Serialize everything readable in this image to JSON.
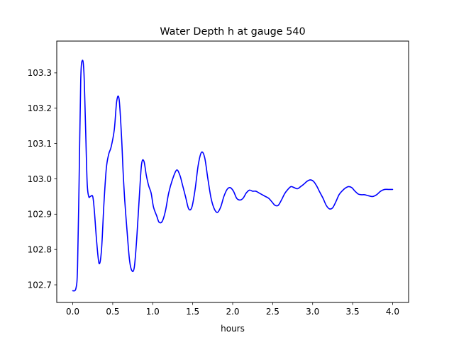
{
  "chart_data": {
    "type": "line",
    "title": "Water Depth h at gauge 540",
    "xlabel": "hours",
    "ylabel": "",
    "xlim": [
      -0.2,
      4.2
    ],
    "ylim": [
      102.65,
      103.39
    ],
    "x_ticks": [
      0.0,
      0.5,
      1.0,
      1.5,
      2.0,
      2.5,
      3.0,
      3.5,
      4.0
    ],
    "x_tick_labels": [
      "0.0",
      "0.5",
      "1.0",
      "1.5",
      "2.0",
      "2.5",
      "3.0",
      "3.5",
      "4.0"
    ],
    "y_ticks": [
      102.7,
      102.8,
      102.9,
      103.0,
      103.1,
      103.2,
      103.3
    ],
    "y_tick_labels": [
      "102.7",
      "102.8",
      "102.9",
      "103.0",
      "103.1",
      "103.2",
      "103.3"
    ],
    "grid": false,
    "series": [
      {
        "color": "#0000ff",
        "x": [
          0.0,
          0.04,
          0.06,
          0.08,
          0.1,
          0.12,
          0.14,
          0.16,
          0.18,
          0.2,
          0.22,
          0.25,
          0.27,
          0.3,
          0.33,
          0.36,
          0.39,
          0.42,
          0.45,
          0.48,
          0.52,
          0.55,
          0.58,
          0.61,
          0.63,
          0.65,
          0.68,
          0.71,
          0.74,
          0.77,
          0.8,
          0.83,
          0.86,
          0.89,
          0.92,
          0.95,
          0.98,
          1.01,
          1.05,
          1.08,
          1.12,
          1.16,
          1.2,
          1.25,
          1.3,
          1.34,
          1.37,
          1.41,
          1.45,
          1.49,
          1.53,
          1.57,
          1.61,
          1.65,
          1.69,
          1.73,
          1.77,
          1.81,
          1.85,
          1.89,
          1.93,
          1.97,
          2.01,
          2.05,
          2.09,
          2.13,
          2.17,
          2.21,
          2.25,
          2.29,
          2.33,
          2.37,
          2.41,
          2.45,
          2.49,
          2.53,
          2.57,
          2.61,
          2.65,
          2.69,
          2.73,
          2.77,
          2.81,
          2.85,
          2.89,
          2.93,
          2.97,
          3.01,
          3.05,
          3.09,
          3.13,
          3.17,
          3.21,
          3.25,
          3.29,
          3.33,
          3.37,
          3.41,
          3.45,
          3.49,
          3.53,
          3.57,
          3.61,
          3.65,
          3.7,
          3.75,
          3.8,
          3.85,
          3.9,
          3.95,
          4.0
        ],
        "y": [
          102.683,
          102.69,
          102.75,
          103.0,
          103.28,
          103.335,
          103.3,
          103.15,
          102.99,
          102.95,
          102.95,
          102.95,
          102.91,
          102.82,
          102.76,
          102.8,
          102.93,
          103.03,
          103.07,
          103.09,
          103.14,
          103.22,
          103.225,
          103.12,
          103.02,
          102.94,
          102.85,
          102.77,
          102.74,
          102.75,
          102.83,
          102.94,
          103.04,
          103.05,
          103.01,
          102.98,
          102.96,
          102.92,
          102.895,
          102.877,
          102.88,
          102.91,
          102.96,
          103.0,
          103.025,
          103.01,
          102.985,
          102.95,
          102.915,
          102.92,
          102.97,
          103.04,
          103.075,
          103.06,
          103.0,
          102.945,
          102.915,
          102.905,
          102.92,
          102.95,
          102.97,
          102.975,
          102.965,
          102.945,
          102.94,
          102.945,
          102.96,
          102.968,
          102.965,
          102.965,
          102.96,
          102.955,
          102.95,
          102.945,
          102.935,
          102.925,
          102.925,
          102.94,
          102.958,
          102.97,
          102.978,
          102.975,
          102.972,
          102.978,
          102.985,
          102.993,
          102.997,
          102.993,
          102.98,
          102.962,
          102.945,
          102.925,
          102.915,
          102.918,
          102.935,
          102.955,
          102.966,
          102.974,
          102.978,
          102.975,
          102.965,
          102.957,
          102.955,
          102.955,
          102.952,
          102.95,
          102.955,
          102.965,
          102.97,
          102.97,
          102.97
        ]
      }
    ]
  }
}
